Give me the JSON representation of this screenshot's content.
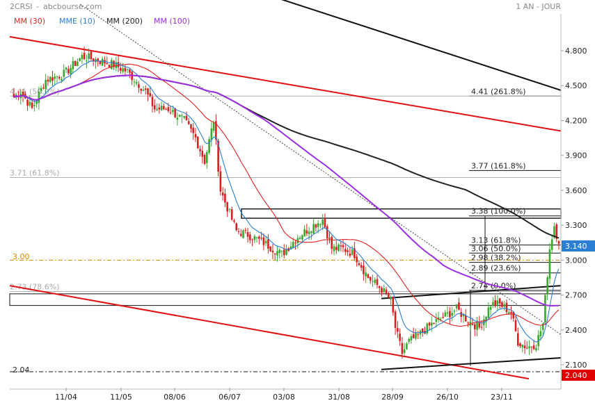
{
  "header": {
    "symbol": "2CRSI",
    "source": "abcbourse.com",
    "period": "1 AN - JOUR"
  },
  "legend": [
    {
      "label": "MM (30)",
      "color": "#e02020"
    },
    {
      "label": "MME (10)",
      "color": "#2a7fd4"
    },
    {
      "label": "MM (200)",
      "color": "#222222"
    },
    {
      "label": "MM (100)",
      "color": "#9b30e0"
    }
  ],
  "price_tags": {
    "last": "3.140",
    "low": "2.040",
    "last_color": "#2a7fd4",
    "low_color": "#e00000"
  },
  "left_labels": {
    "three": "3.00",
    "two_oh_four": "2.04"
  },
  "chart_data": {
    "type": "candlestick",
    "title": "",
    "x_tick_labels": [
      "11/04",
      "11/05",
      "08/06",
      "06/07",
      "03/08",
      "31/08",
      "28/09",
      "26/10",
      "23/11"
    ],
    "y_tick_labels": [
      "4.800",
      "4.500",
      "4.200",
      "3.900",
      "3.600",
      "3.300",
      "3.000",
      "2.700",
      "2.400",
      "2.100"
    ],
    "ylim": [
      2.0,
      5.1
    ],
    "grid": false,
    "legend_position": "top-left",
    "fibonacci_levels": [
      {
        "label": "4.41 (261.8%)",
        "value": 4.41
      },
      {
        "label": "3.77 (161.8%)",
        "value": 3.77
      },
      {
        "label": "3.38 (100.0%)",
        "value": 3.38
      },
      {
        "label": "3.13 (61.8%)",
        "value": 3.13
      },
      {
        "label": "3.06 (50.0%)",
        "value": 3.06
      },
      {
        "label": "2.98 (38.2%)",
        "value": 2.98
      },
      {
        "label": "2.89 (23.6%)",
        "value": 2.89
      },
      {
        "label": "2.74 (0.0%)",
        "value": 2.74
      }
    ],
    "left_fibonacci_levels": [
      {
        "label": "4.41 (50.0%)",
        "value": 4.41
      },
      {
        "label": "3.71 (61.8%)",
        "value": 3.71
      },
      {
        "label": "2.73 (78.6%)",
        "value": 2.73
      }
    ],
    "horizontal_levels": [
      3.0,
      2.04
    ],
    "close_keypoints": [
      [
        0,
        4.4
      ],
      [
        3,
        4.45
      ],
      [
        8,
        4.3
      ],
      [
        14,
        4.55
      ],
      [
        22,
        4.6
      ],
      [
        30,
        4.75
      ],
      [
        37,
        4.72
      ],
      [
        44,
        4.68
      ],
      [
        50,
        4.62
      ],
      [
        58,
        4.45
      ],
      [
        62,
        4.3
      ],
      [
        68,
        4.3
      ],
      [
        75,
        4.2
      ],
      [
        80,
        4.05
      ],
      [
        84,
        3.85
      ],
      [
        88,
        4.2
      ],
      [
        91,
        3.6
      ],
      [
        94,
        3.45
      ],
      [
        98,
        3.25
      ],
      [
        103,
        3.22
      ],
      [
        110,
        3.15
      ],
      [
        118,
        3.05
      ],
      [
        125,
        3.2
      ],
      [
        132,
        3.3
      ],
      [
        136,
        3.35
      ],
      [
        140,
        3.1
      ],
      [
        145,
        3.1
      ],
      [
        150,
        3.05
      ],
      [
        156,
        2.85
      ],
      [
        162,
        2.75
      ],
      [
        166,
        2.65
      ],
      [
        168,
        2.42
      ],
      [
        171,
        2.2
      ],
      [
        174,
        2.3
      ],
      [
        178,
        2.35
      ],
      [
        184,
        2.45
      ],
      [
        190,
        2.52
      ],
      [
        195,
        2.58
      ],
      [
        200,
        2.48
      ],
      [
        205,
        2.42
      ],
      [
        210,
        2.62
      ],
      [
        214,
        2.62
      ],
      [
        219,
        2.55
      ],
      [
        222,
        2.3
      ],
      [
        226,
        2.25
      ],
      [
        230,
        2.28
      ],
      [
        233,
        2.45
      ],
      [
        236,
        3.1
      ],
      [
        238,
        3.3
      ],
      [
        240,
        3.14
      ]
    ],
    "candle_count": 241,
    "series": [
      {
        "name": "MM (30)",
        "type": "moving_average",
        "period": 30,
        "color": "#e02020"
      },
      {
        "name": "MME (10)",
        "type": "exponential_moving_average",
        "period": 10,
        "color": "#2a7fd4"
      },
      {
        "name": "MM (200)",
        "type": "moving_average",
        "period": 200,
        "color": "#222222"
      },
      {
        "name": "MM (100)",
        "type": "moving_average",
        "period": 100,
        "color": "#9b30e0"
      }
    ],
    "up_color": "#3aa82f",
    "down_color": "#d42020",
    "trend_channel_color": "#e01010",
    "trend_line_color": "#111111"
  }
}
